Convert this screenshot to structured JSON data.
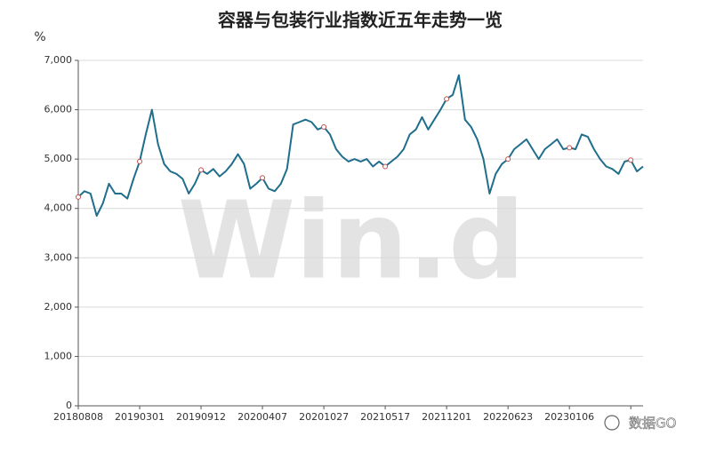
{
  "chart_data": {
    "type": "line",
    "title": "容器与包装行业指数近五年走势一览",
    "y_label": "%",
    "watermark": "Win.d",
    "badge": "数据GO",
    "categories": [
      "20180808",
      null,
      null,
      null,
      null,
      null,
      null,
      null,
      null,
      null,
      "20190301",
      null,
      null,
      null,
      null,
      null,
      null,
      null,
      null,
      null,
      "20190912",
      null,
      null,
      null,
      null,
      null,
      null,
      null,
      null,
      null,
      "20200407",
      null,
      null,
      null,
      null,
      null,
      null,
      null,
      null,
      null,
      "20201027",
      null,
      null,
      null,
      null,
      null,
      null,
      null,
      null,
      null,
      "20210517",
      null,
      null,
      null,
      null,
      null,
      null,
      null,
      null,
      null,
      "20211201",
      null,
      null,
      null,
      null,
      null,
      null,
      null,
      null,
      null,
      "20220623",
      null,
      null,
      null,
      null,
      null,
      null,
      null,
      null,
      null,
      "20230106",
      null,
      null,
      null,
      null,
      null,
      null,
      null,
      null,
      null,
      null,
      null,
      null
    ],
    "series": [
      {
        "color": "#1f6e8c",
        "marker_color": "#c0504d",
        "values": [
          4230,
          4350,
          4300,
          3850,
          4100,
          4500,
          4300,
          4300,
          4200,
          4600,
          4950,
          5500,
          6000,
          5300,
          4900,
          4750,
          4700,
          4600,
          4300,
          4500,
          4780,
          4700,
          4800,
          4650,
          4750,
          4900,
          5100,
          4900,
          4400,
          4500,
          4620,
          4400,
          4350,
          4500,
          4800,
          5700,
          5750,
          5800,
          5750,
          5600,
          5650,
          5500,
          5200,
          5050,
          4950,
          5000,
          4950,
          5000,
          4850,
          4950,
          4850,
          4950,
          5050,
          5200,
          5500,
          5600,
          5850,
          5600,
          5800,
          6000,
          6220,
          6300,
          6700,
          5800,
          5650,
          5400,
          5000,
          4300,
          4700,
          4900,
          5000,
          5200,
          5300,
          5400,
          5200,
          5000,
          5200,
          5300,
          5400,
          5200,
          5230,
          5200,
          5500,
          5450,
          5200,
          5000,
          4850,
          4800,
          4700,
          4950,
          4980,
          4750,
          4850
        ]
      }
    ],
    "ylim": [
      0,
      7000
    ],
    "yticks": [
      0,
      {
        "value": 1000,
        "label": "1,000"
      },
      {
        "value": 2000,
        "label": "2,000"
      },
      {
        "value": 3000,
        "label": "3,000"
      },
      {
        "value": 4000,
        "label": "4,000"
      },
      {
        "value": 5000,
        "label": "5,000"
      },
      {
        "value": 6000,
        "label": "6,000"
      },
      {
        "value": 7000,
        "label": "7,000"
      }
    ],
    "grid": true
  }
}
